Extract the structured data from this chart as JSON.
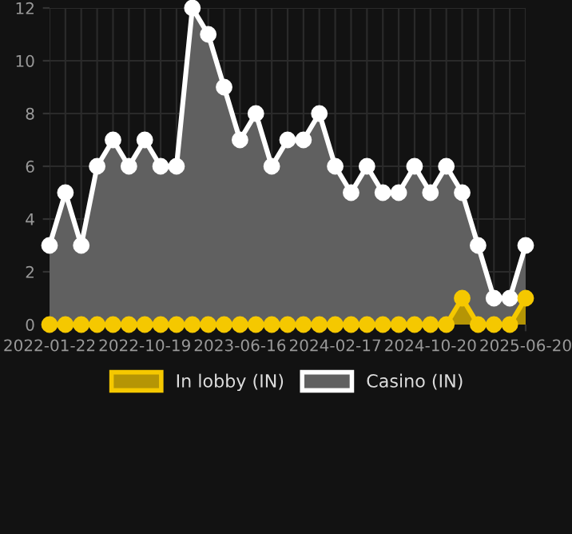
{
  "chart_data": {
    "type": "area",
    "categories": [
      "2022-01-22",
      null,
      null,
      null,
      null,
      null,
      "2022-10-19",
      null,
      null,
      null,
      null,
      null,
      "2023-06-16",
      null,
      null,
      null,
      null,
      null,
      "2024-02-17",
      null,
      null,
      null,
      null,
      null,
      "2024-10-20",
      null,
      null,
      null,
      null,
      null,
      "2025-06-20"
    ],
    "series": [
      {
        "name": "In lobby (IN)",
        "color": "#f5c800",
        "values": [
          0,
          0,
          0,
          0,
          0,
          0,
          0,
          0,
          0,
          0,
          0,
          0,
          0,
          0,
          0,
          0,
          0,
          0,
          0,
          0,
          0,
          0,
          0,
          0,
          0,
          0,
          1,
          0,
          0,
          0,
          1
        ]
      },
      {
        "name": "Casino (IN)",
        "color": "#ffffff",
        "values": [
          3,
          5,
          3,
          6,
          7,
          6,
          7,
          6,
          6,
          12,
          11,
          9,
          7,
          8,
          6,
          7,
          7,
          8,
          6,
          5,
          6,
          5,
          5,
          6,
          5,
          6,
          5,
          3,
          1,
          1,
          3
        ]
      }
    ],
    "ylim": [
      0,
      12
    ],
    "yticks": [
      0,
      2,
      4,
      6,
      8,
      10,
      12
    ],
    "grid": true,
    "legend": "bottom",
    "marker": "circle"
  }
}
